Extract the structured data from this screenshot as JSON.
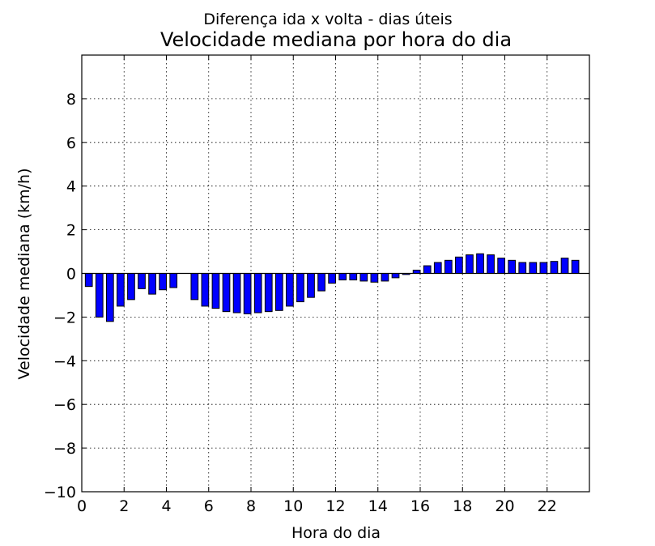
{
  "chart_data": {
    "type": "bar",
    "suptitle": "Diferença ida x volta - dias úteis",
    "title": "Velocidade mediana por hora do dia",
    "xlabel": "Hora do dia",
    "ylabel": "Velocidade mediana (km/h)",
    "xlim": [
      0,
      24
    ],
    "ylim": [
      -10,
      10
    ],
    "x_ticks": [
      0,
      2,
      4,
      6,
      8,
      10,
      12,
      14,
      16,
      18,
      20,
      22
    ],
    "y_ticks": [
      -10,
      -8,
      -6,
      -4,
      -2,
      0,
      2,
      4,
      6,
      8
    ],
    "y_tick_labels": [
      "−10",
      "−8",
      "−6",
      "−4",
      "−2",
      "0",
      "2",
      "4",
      "6",
      "8"
    ],
    "bar_width_hours": 0.3333,
    "grid": true,
    "bar_color": "#0000ff",
    "bars": [
      {
        "x": 0.333,
        "value": -0.6
      },
      {
        "x": 0.833,
        "value": -2.0
      },
      {
        "x": 1.333,
        "value": -2.2
      },
      {
        "x": 1.833,
        "value": -1.5
      },
      {
        "x": 2.333,
        "value": -1.2
      },
      {
        "x": 2.833,
        "value": -0.7
      },
      {
        "x": 3.333,
        "value": -0.95
      },
      {
        "x": 3.833,
        "value": -0.75
      },
      {
        "x": 4.333,
        "value": -0.65
      },
      {
        "x": 5.333,
        "value": -1.2
      },
      {
        "x": 5.833,
        "value": -1.5
      },
      {
        "x": 6.333,
        "value": -1.6
      },
      {
        "x": 6.833,
        "value": -1.75
      },
      {
        "x": 7.333,
        "value": -1.8
      },
      {
        "x": 7.833,
        "value": -1.85
      },
      {
        "x": 8.333,
        "value": -1.8
      },
      {
        "x": 8.833,
        "value": -1.75
      },
      {
        "x": 9.333,
        "value": -1.7
      },
      {
        "x": 9.833,
        "value": -1.5
      },
      {
        "x": 10.333,
        "value": -1.3
      },
      {
        "x": 10.833,
        "value": -1.1
      },
      {
        "x": 11.333,
        "value": -0.8
      },
      {
        "x": 11.833,
        "value": -0.45
      },
      {
        "x": 12.333,
        "value": -0.3
      },
      {
        "x": 12.833,
        "value": -0.3
      },
      {
        "x": 13.333,
        "value": -0.35
      },
      {
        "x": 13.833,
        "value": -0.4
      },
      {
        "x": 14.333,
        "value": -0.35
      },
      {
        "x": 14.833,
        "value": -0.2
      },
      {
        "x": 15.333,
        "value": -0.05
      },
      {
        "x": 15.833,
        "value": 0.15
      },
      {
        "x": 16.333,
        "value": 0.35
      },
      {
        "x": 16.833,
        "value": 0.5
      },
      {
        "x": 17.333,
        "value": 0.6
      },
      {
        "x": 17.833,
        "value": 0.75
      },
      {
        "x": 18.333,
        "value": 0.85
      },
      {
        "x": 18.833,
        "value": 0.9
      },
      {
        "x": 19.333,
        "value": 0.85
      },
      {
        "x": 19.833,
        "value": 0.7
      },
      {
        "x": 20.333,
        "value": 0.6
      },
      {
        "x": 20.833,
        "value": 0.5
      },
      {
        "x": 21.333,
        "value": 0.5
      },
      {
        "x": 21.833,
        "value": 0.5
      },
      {
        "x": 22.333,
        "value": 0.55
      },
      {
        "x": 22.833,
        "value": 0.7
      },
      {
        "x": 23.333,
        "value": 0.6
      }
    ]
  }
}
